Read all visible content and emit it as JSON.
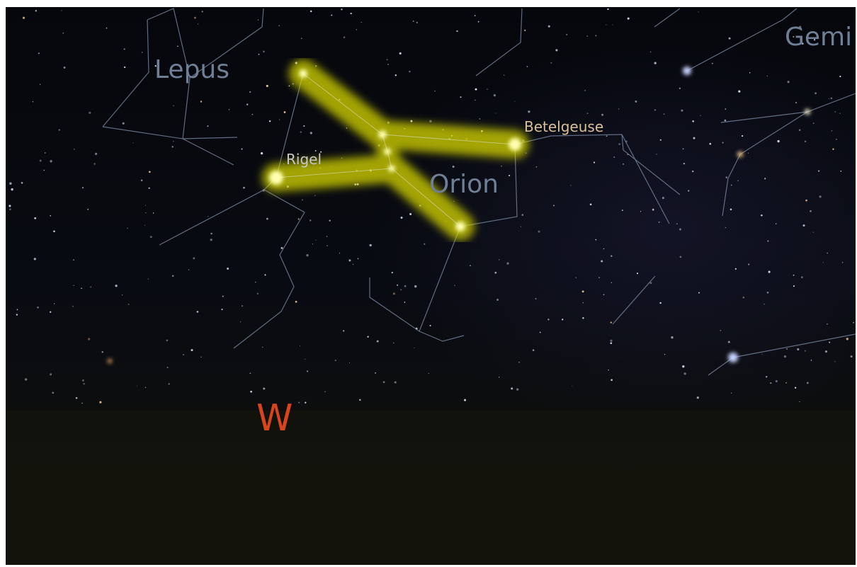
{
  "constellations": [
    "Lepus",
    "Orion",
    "Gemi"
  ],
  "stars": [
    "Rigel",
    "Betelgeuse"
  ],
  "cardinal": "W"
}
